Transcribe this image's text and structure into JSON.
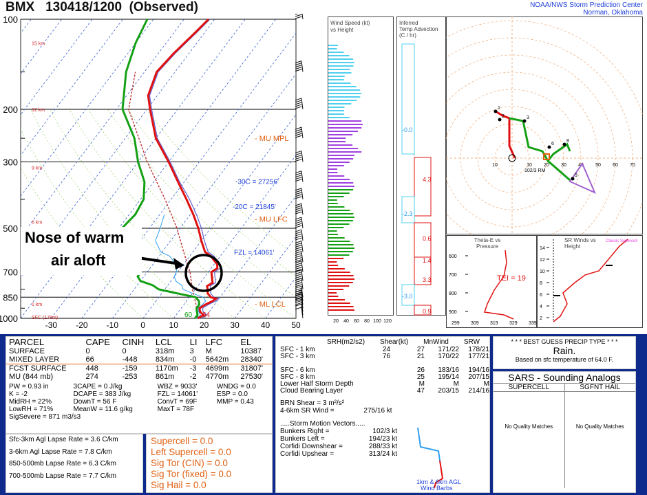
{
  "header": {
    "station": "BMX",
    "time": "130418/1200",
    "mode": "(Observed)",
    "org_line1": "NOAA/NWS Storm Prediction Center",
    "org_line2": "Norman, Oklahoma"
  },
  "annotation": {
    "line1": "Nose of warm",
    "line2": "air aloft"
  },
  "colors": {
    "temperature": "#e01010",
    "dewpoint": "#14a014",
    "virtual_temp": "#4a4ad0",
    "wetbulb": "#30a0f0",
    "navy": "#0e2a8c",
    "orange": "#e06010"
  },
  "chart_data": [
    {
      "type": "line",
      "name": "skewt",
      "title": "",
      "y_pressure_ticks": [
        100,
        200,
        300,
        500,
        700,
        850,
        1000
      ],
      "x_temp_ticks": [
        -30,
        -20,
        -10,
        0,
        10,
        20,
        30,
        40,
        50
      ],
      "height_labels": [
        {
          "p": 120,
          "text": "15 km"
        },
        {
          "p": 200,
          "text": "12 km"
        },
        {
          "p": 313,
          "text": "9 km"
        },
        {
          "p": 475,
          "text": "6 km"
        },
        {
          "p": 700,
          "text": "3 km"
        },
        {
          "p": 895,
          "text": "1 km"
        },
        {
          "p": 990,
          "text": "SFC (178m)"
        }
      ],
      "temperature": [
        [
          1000,
          18
        ],
        [
          975,
          19
        ],
        [
          950,
          17
        ],
        [
          925,
          16
        ],
        [
          900,
          17
        ],
        [
          875,
          18.5
        ],
        [
          860,
          19
        ],
        [
          850,
          17
        ],
        [
          825,
          15
        ],
        [
          800,
          14
        ],
        [
          780,
          13
        ],
        [
          760,
          14
        ],
        [
          740,
          13
        ],
        [
          720,
          12
        ],
        [
          700,
          11
        ],
        [
          680,
          12
        ],
        [
          660,
          11
        ],
        [
          640,
          9
        ],
        [
          620,
          7
        ],
        [
          600,
          4
        ],
        [
          550,
          0
        ],
        [
          500,
          -4
        ],
        [
          450,
          -9
        ],
        [
          400,
          -15
        ],
        [
          350,
          -22
        ],
        [
          300,
          -30
        ],
        [
          250,
          -40
        ],
        [
          200,
          -49
        ],
        [
          180,
          -53
        ],
        [
          150,
          -56
        ],
        [
          130,
          -55
        ],
        [
          110,
          -53
        ],
        [
          100,
          -52
        ]
      ],
      "dewpoint": [
        [
          1000,
          17
        ],
        [
          975,
          17
        ],
        [
          950,
          16
        ],
        [
          925,
          15
        ],
        [
          900,
          15
        ],
        [
          875,
          14
        ],
        [
          850,
          12
        ],
        [
          825,
          5
        ],
        [
          800,
          -2
        ],
        [
          775,
          -5
        ],
        [
          750,
          -10
        ],
        [
          725,
          -12
        ],
        [
          700,
          -12
        ],
        [
          675,
          -14
        ],
        [
          650,
          -16
        ],
        [
          620,
          -20
        ],
        [
          600,
          -25
        ],
        [
          550,
          -30
        ],
        [
          500,
          -29
        ],
        [
          450,
          -28
        ],
        [
          400,
          -29
        ],
        [
          350,
          -33
        ],
        [
          300,
          -40
        ],
        [
          250,
          -47
        ],
        [
          200,
          -58
        ],
        [
          150,
          -66
        ],
        [
          120,
          -70
        ],
        [
          100,
          -72
        ]
      ],
      "barb_speeds_kt": [
        5,
        10,
        15,
        20,
        25,
        30,
        35,
        40,
        45,
        50,
        55,
        60,
        70,
        80,
        90,
        90,
        85,
        80,
        70,
        60,
        55,
        50
      ],
      "labels": {
        "mu_mpl": "MU MPL",
        "mu_lfc": "MU LFC",
        "ml_lcl": "ML LCL",
        "fzl": "FZL = 14061'",
        "m30": "-30C = 27256'",
        "m20": "-20C = 21845'",
        "dcape_lbl1": "60",
        "dcape_lbl2": "64"
      }
    },
    {
      "type": "bar",
      "name": "wind-speed-vs-height",
      "title": "Wind Speed (kt) vs Height",
      "x_ticks": [
        "20",
        "40",
        "60",
        "80",
        "100",
        "120"
      ]
    },
    {
      "type": "bar",
      "name": "temp-advection",
      "title": "Inferred Temp Advection (C / hr)",
      "values_labeled": [
        "-0.0",
        "4.3",
        "-2.3",
        "0.6",
        "1.4",
        "3.3",
        "-3.0",
        "0.9"
      ]
    },
    {
      "type": "line",
      "name": "hodograph",
      "rings": [
        10,
        20,
        30,
        40,
        50,
        60,
        70,
        80
      ],
      "label_mean": "102/3 RM",
      "levels": [
        "1",
        "2",
        "3",
        "6",
        "8",
        "9"
      ]
    },
    {
      "type": "line",
      "name": "theta-e",
      "title": "Theta-E vs Pressure",
      "y_ticks": [
        600,
        700,
        800,
        900
      ],
      "x_ticks": [
        "299",
        "309",
        "319",
        "329",
        "339"
      ],
      "tei": "TEI = 19"
    },
    {
      "type": "line",
      "name": "sr-winds",
      "title": "SR Winds vs Height",
      "y_ticks": [
        2,
        4,
        6,
        8,
        10,
        12,
        14
      ],
      "x_ticks": [
        "0",
        "20",
        "40",
        "60",
        "80"
      ],
      "note": "Classic Supercell"
    }
  ],
  "parcel": {
    "headers": [
      "PARCEL",
      "CAPE",
      "CINH",
      "LCL",
      "LI",
      "LFC",
      "EL"
    ],
    "rows": [
      [
        "SURFACE",
        "0",
        "0",
        "318m",
        "3",
        "M",
        "10387"
      ],
      [
        "MIXED LAYER",
        "66",
        "-448",
        "834m",
        "-0",
        "5642m",
        "28340'"
      ],
      [
        "FCST SURFACE",
        "448",
        "-159",
        "1170m",
        "-3",
        "4699m",
        "31807'"
      ],
      [
        "MU (844 mb)",
        "274",
        "-253",
        "861m",
        "-2",
        "4770m",
        "27530'"
      ]
    ],
    "stats": [
      [
        "PW = 0.93 in",
        "3CAPE = 0 J/kg",
        "WBZ = 9033'",
        "WNDG = 0.0"
      ],
      [
        "K = -2",
        "DCAPE = 383 J/kg",
        "FZL = 14061'",
        "ESP = 0.0"
      ],
      [
        "MidRH = 22%",
        "DownT = 56 F",
        "ConvT = 69F",
        "MMP = 0.43"
      ],
      [
        "LowRH = 71%",
        "MeanW = 11.6 g/kg",
        "MaxT = 78F",
        ""
      ]
    ],
    "sigsevere": "SigSevere = 871 m3/s3",
    "lapse": [
      "Sfc-3km Agl Lapse Rate = 3.6 C/km",
      "3-6km Agl Lapse Rate = 7.8 C/km",
      "850-500mb Lapse Rate = 6.3 C/km",
      "700-500mb Lapse Rate = 7.7 C/km"
    ],
    "indices": [
      "Supercell = 0.0",
      "Left Supercell = 0.0",
      "Sig Tor (CIN) = 0.0",
      "Sig Tor (fixed) = 0.0",
      "Sig Hail = 0.0"
    ]
  },
  "kinematics": {
    "headers": [
      "SRH(m2/s2)",
      "Shear(kt)",
      "MnWind",
      "SRW"
    ],
    "rows": [
      [
        "SFC - 1 km",
        "24",
        "27",
        "171/22",
        "178/21"
      ],
      [
        "SFC - 3 km",
        "76",
        "21",
        "170/22",
        "177/21"
      ],
      [
        "",
        "",
        "",
        "",
        ""
      ],
      [
        "SFC - 6 km",
        "",
        "26",
        "183/16",
        "194/16"
      ],
      [
        "SFC - 8 km",
        "",
        "25",
        "195/14",
        "207/15"
      ],
      [
        "Lower Half Storm Depth",
        "",
        "M",
        "M",
        "M"
      ],
      [
        "Cloud Bearing Layer",
        "",
        "47",
        "203/15",
        "214/16"
      ]
    ],
    "brn": "BRN Shear = 3 m²/s²",
    "sr46": "4-6km SR Wind =",
    "sr46_val": "275/16 kt",
    "storm_motion": ".....Storm Motion Vectors.....",
    "vectors": [
      [
        "Bunkers Right =",
        "102/3 kt"
      ],
      [
        "Bunkers Left =",
        "194/23 kt"
      ],
      [
        "Corfidi Downshear =",
        "288/33 kt"
      ],
      [
        "Corfidi Upshear =",
        "313/24 kt"
      ]
    ],
    "barbs_label1": "1km & 6km AGL",
    "barbs_label2": "Wind Barbs"
  },
  "precip": {
    "title": "* * * BEST GUESS PRECIP TYPE * * *",
    "type": "Rain.",
    "note": "Based on sfc temperature of 64.0 F."
  },
  "sars": {
    "title": "SARS - Sounding Analogs",
    "col1": "SUPERCELL",
    "col2": "SGFNT HAIL",
    "none1": "No Quality Matches",
    "none2": "No Quality Matches"
  }
}
